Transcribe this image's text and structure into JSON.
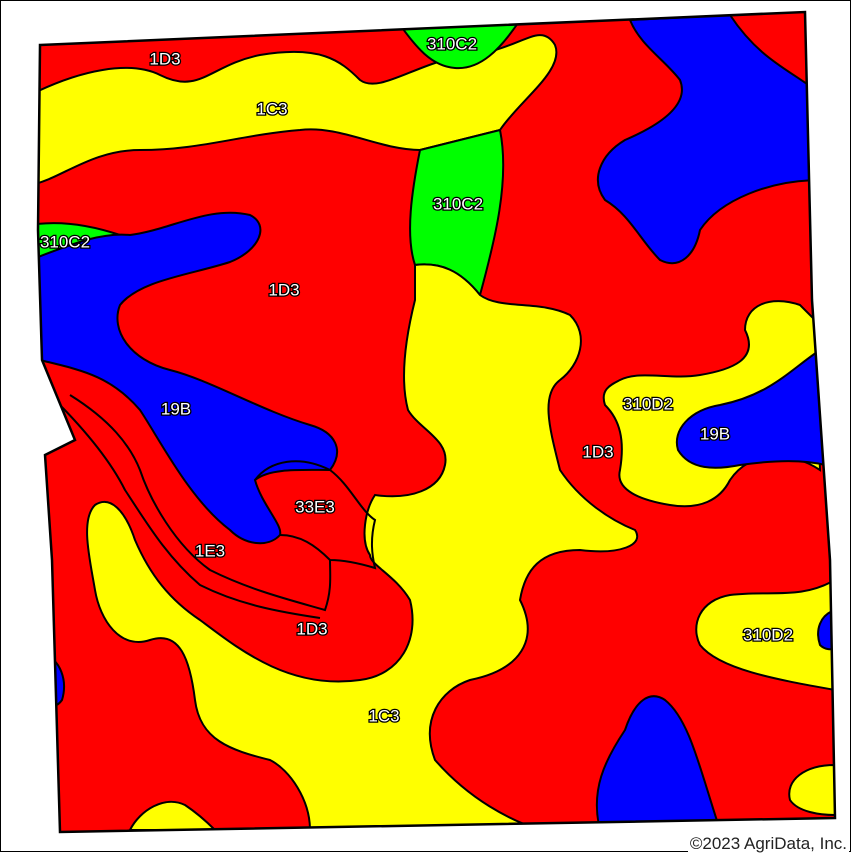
{
  "colors": {
    "red": "#ff0000",
    "yellow": "#ffff00",
    "blue": "#0000ff",
    "green": "#00ff00"
  },
  "labels": {
    "l_1d3_top": "1D3",
    "l_310c2_top": "310C2",
    "l_1c3_top": "1C3",
    "l_310c2_mid": "310C2",
    "l_310c2_left": "310C2",
    "l_1d3_center": "1D3",
    "l_19b_left": "19B",
    "l_310d2_right": "310D2",
    "l_19b_right": "19B",
    "l_1d3_right": "1D3",
    "l_33e3": "33E3",
    "l_1e3": "1E3",
    "l_1d3_lower": "1D3",
    "l_310d2_lower": "310D2",
    "l_1c3_bottom": "1C3"
  },
  "copyright": "©2023 AgriData, Inc."
}
